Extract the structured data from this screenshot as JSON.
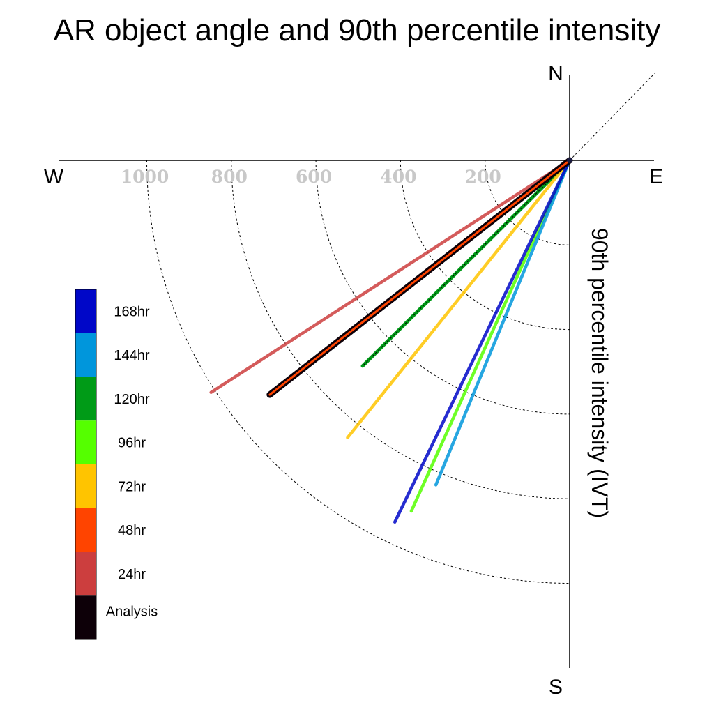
{
  "chart_data": {
    "type": "polar-vector",
    "title": "AR object angle and 90th percentile intensity",
    "axis_label": "90th percentile intensity (IVT)",
    "compass": {
      "north": "N",
      "south": "S",
      "east": "E",
      "west": "W"
    },
    "radial_rings": [
      200,
      400,
      600,
      800,
      1000
    ],
    "radial_ring_labels": [
      "200",
      "400",
      "600",
      "800",
      "1000"
    ],
    "rmax": 1200,
    "grid": true,
    "legend_position": "bottom-left",
    "series": [
      {
        "name": "Analysis",
        "color": "#0d0008",
        "angle_deg_from_north": 232.0,
        "intensity": 900
      },
      {
        "name": "24hr",
        "color": "#cc3e3e",
        "angle_deg_from_north": 237.1,
        "intensity": 1010
      },
      {
        "name": "48hr",
        "color": "#ff4400",
        "angle_deg_from_north": 232.0,
        "intensity": 900
      },
      {
        "name": "72hr",
        "color": "#ffc400",
        "angle_deg_from_north": 218.7,
        "intensity": 840
      },
      {
        "name": "96hr",
        "color": "#55ff00",
        "angle_deg_from_north": 204.3,
        "intensity": 910
      },
      {
        "name": "120hr",
        "color": "#009b17",
        "angle_deg_from_north": 225.2,
        "intensity": 690
      },
      {
        "name": "144hr",
        "color": "#0096dc",
        "angle_deg_from_north": 202.4,
        "intensity": 830
      },
      {
        "name": "168hr",
        "color": "#0007c8",
        "angle_deg_from_north": 205.8,
        "intensity": 950
      }
    ]
  }
}
